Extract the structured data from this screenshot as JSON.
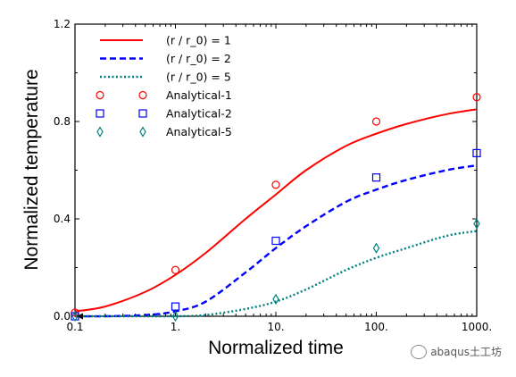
{
  "chart_data": {
    "type": "line",
    "xlabel": "Normalized time",
    "ylabel": "Normalized temperature",
    "xscale": "log",
    "xlim": [
      0.1,
      1000
    ],
    "ylim": [
      0,
      1.2
    ],
    "x_ticks": [
      0.1,
      1,
      10,
      100,
      1000
    ],
    "x_tick_labels": [
      "0.1",
      "1.",
      "10.",
      "100.",
      "1000."
    ],
    "y_ticks": [
      0,
      0.4,
      0.8,
      1.2
    ],
    "y_tick_labels": [
      "0.0",
      "0.4",
      "0.8",
      "1.2"
    ],
    "legend_placement": "top-left",
    "grid": false,
    "series": [
      {
        "name": "(r / r_0) = 1",
        "kind": "line",
        "style": "solid",
        "color": "#ff0000",
        "x": [
          0.1,
          0.2,
          0.5,
          1,
          2,
          5,
          10,
          20,
          50,
          100,
          200,
          500,
          1000
        ],
        "y": [
          0.02,
          0.04,
          0.1,
          0.17,
          0.26,
          0.4,
          0.5,
          0.6,
          0.7,
          0.75,
          0.79,
          0.83,
          0.85
        ]
      },
      {
        "name": "(r / r_0) = 2",
        "kind": "line",
        "style": "dashed",
        "color": "#0000ff",
        "x": [
          0.1,
          0.2,
          0.5,
          1,
          2,
          5,
          10,
          20,
          50,
          100,
          200,
          500,
          1000
        ],
        "y": [
          0.0,
          0.0,
          0.005,
          0.02,
          0.06,
          0.18,
          0.28,
          0.37,
          0.47,
          0.52,
          0.56,
          0.6,
          0.62
        ]
      },
      {
        "name": "(r / r_0) = 5",
        "kind": "line",
        "style": "dotted",
        "color": "#008080",
        "x": [
          0.1,
          0.5,
          1,
          2,
          5,
          10,
          20,
          50,
          100,
          200,
          500,
          1000
        ],
        "y": [
          0.0,
          0.0,
          0.0,
          0.005,
          0.03,
          0.06,
          0.11,
          0.19,
          0.24,
          0.28,
          0.33,
          0.35
        ]
      },
      {
        "name": "Analytical-1",
        "kind": "marker",
        "marker": "circle",
        "color": "#ff0000",
        "x": [
          0.1,
          1,
          10,
          100,
          1000
        ],
        "y": [
          0.015,
          0.19,
          0.54,
          0.8,
          0.9
        ]
      },
      {
        "name": "Analytical-2",
        "kind": "marker",
        "marker": "square",
        "color": "#0000ff",
        "x": [
          0.1,
          1,
          10,
          100,
          1000
        ],
        "y": [
          0.0,
          0.04,
          0.31,
          0.57,
          0.67
        ]
      },
      {
        "name": "Analytical-5",
        "kind": "marker",
        "marker": "diamond",
        "color": "#008080",
        "x": [
          0.1,
          1,
          10,
          100,
          1000
        ],
        "y": [
          0.0,
          0.0,
          0.07,
          0.28,
          0.38
        ]
      }
    ]
  },
  "watermark": {
    "text": "abaqus土工坊"
  }
}
